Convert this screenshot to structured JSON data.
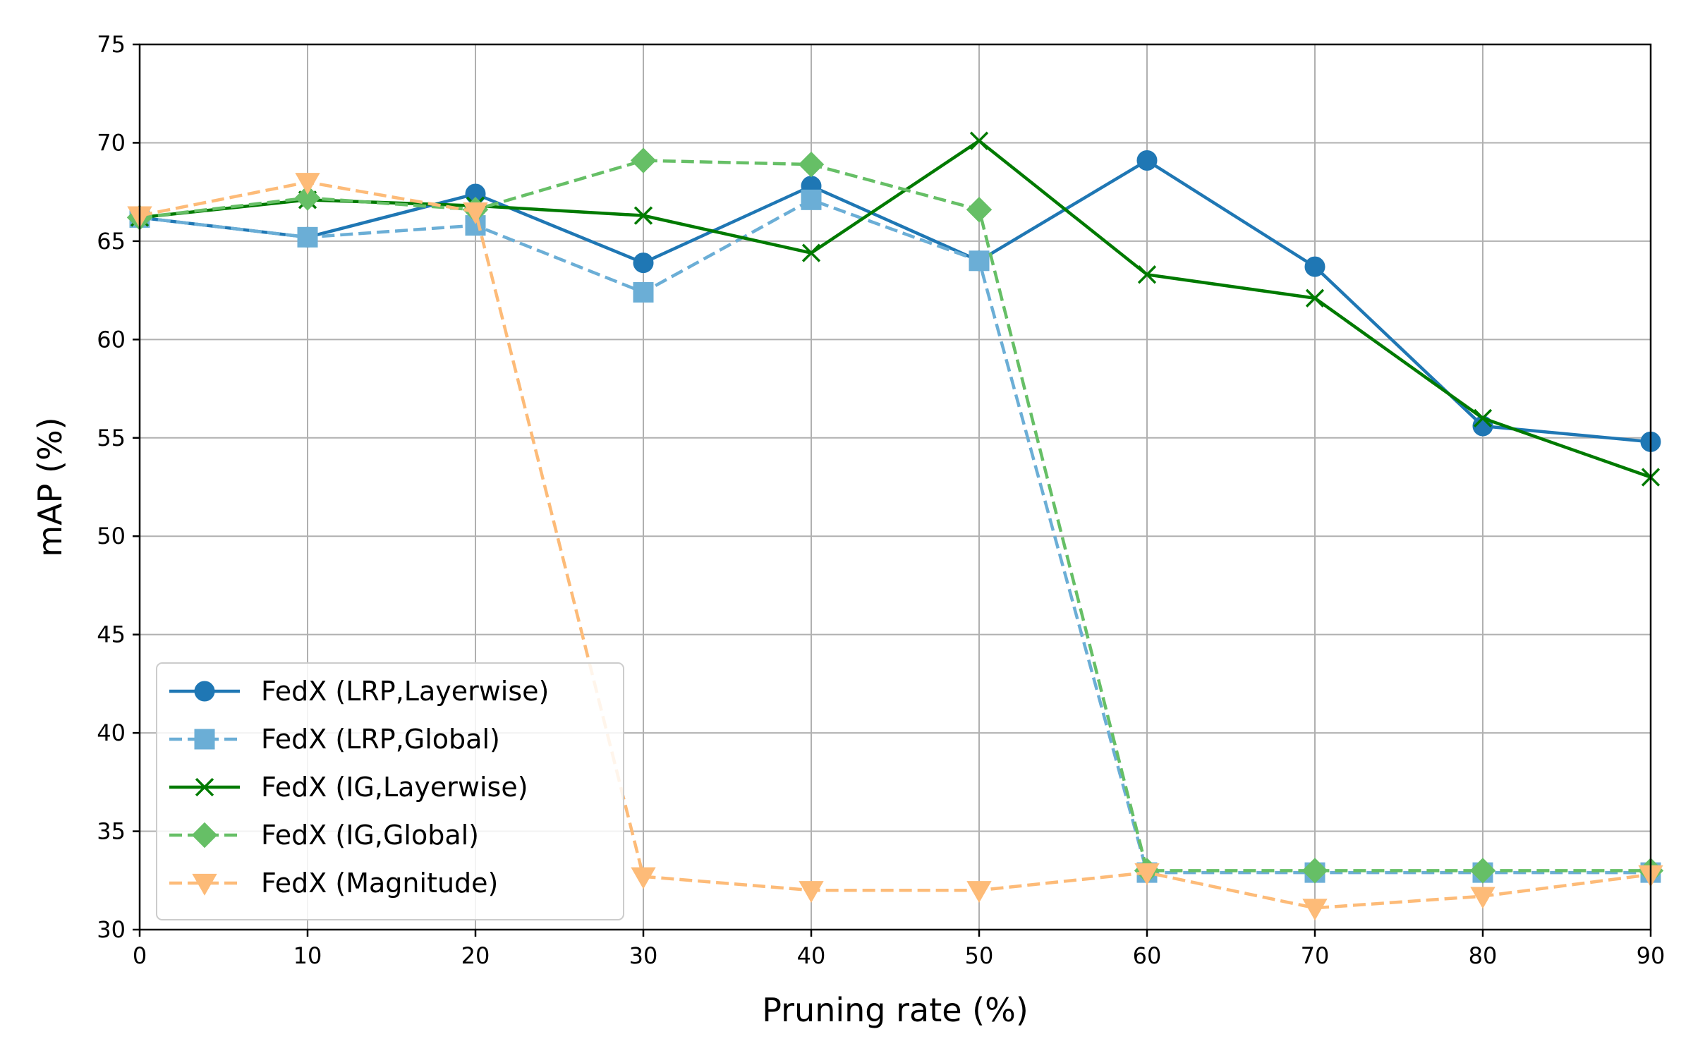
{
  "chart_data": {
    "type": "line",
    "title": "",
    "xlabel": "Pruning rate (%)",
    "ylabel": "mAP (%)",
    "x": [
      0,
      10,
      20,
      30,
      40,
      50,
      60,
      70,
      80,
      90
    ],
    "xlim": [
      0,
      90
    ],
    "ylim": [
      30,
      75
    ],
    "xticks": [
      "0",
      "10",
      "20",
      "30",
      "40",
      "50",
      "60",
      "70",
      "80",
      "90"
    ],
    "yticks": [
      "30",
      "35",
      "40",
      "45",
      "50",
      "55",
      "60",
      "65",
      "70",
      "75"
    ],
    "grid": true,
    "legend_position": "lower-left",
    "series": [
      {
        "name": "FedX (LRP,Layerwise)",
        "color": "#1f77b4",
        "linestyle": "solid",
        "marker": "circle",
        "values": [
          66.2,
          65.2,
          67.4,
          63.9,
          67.8,
          64.0,
          69.1,
          63.7,
          55.6,
          54.8
        ]
      },
      {
        "name": "FedX (LRP,Global)",
        "color": "#6baed6",
        "linestyle": "dashed",
        "marker": "square",
        "values": [
          66.2,
          65.2,
          65.8,
          62.4,
          67.1,
          64.0,
          32.9,
          32.9,
          32.9,
          32.9
        ]
      },
      {
        "name": "FedX (IG,Layerwise)",
        "color": "#007a00",
        "linestyle": "solid",
        "marker": "x",
        "values": [
          66.2,
          67.1,
          66.8,
          66.3,
          64.4,
          70.1,
          63.3,
          62.1,
          56.0,
          53.0
        ]
      },
      {
        "name": "FedX (IG,Global)",
        "color": "#66bf66",
        "linestyle": "dashed",
        "marker": "diamond",
        "values": [
          66.2,
          67.2,
          66.6,
          69.1,
          68.9,
          66.6,
          33.0,
          33.0,
          33.0,
          33.0
        ]
      },
      {
        "name": "FedX (Magnitude)",
        "color": "#fdbb78",
        "linestyle": "dashed",
        "marker": "triangle-down",
        "values": [
          66.3,
          68.0,
          66.5,
          32.7,
          32.0,
          32.0,
          32.9,
          31.1,
          31.7,
          32.8
        ]
      }
    ]
  }
}
